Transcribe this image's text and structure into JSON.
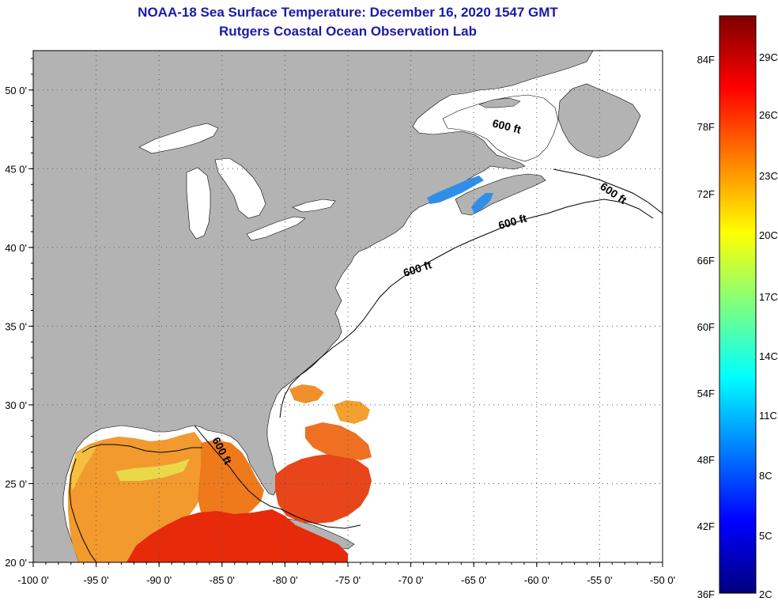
{
  "title": {
    "line1": "NOAA-18 Sea Surface Temperature:  December 16, 2020 1547 GMT",
    "line2": "Rutgers Coastal Ocean Observation Lab"
  },
  "map": {
    "lon_range": [
      -100,
      -50
    ],
    "lat_range": [
      20,
      52.5
    ],
    "x_ticks": [
      {
        "lon": -100,
        "label": "-100 0'"
      },
      {
        "lon": -95,
        "label": "-95 0'"
      },
      {
        "lon": -90,
        "label": "-90 0'"
      },
      {
        "lon": -85,
        "label": "-85 0'"
      },
      {
        "lon": -80,
        "label": "-80 0'"
      },
      {
        "lon": -75,
        "label": "-75 0'"
      },
      {
        "lon": -70,
        "label": "-70 0'"
      },
      {
        "lon": -65,
        "label": "-65 0'"
      },
      {
        "lon": -60,
        "label": "-60 0'"
      },
      {
        "lon": -55,
        "label": "-55 0'"
      },
      {
        "lon": -50,
        "label": "-50 0'"
      }
    ],
    "y_ticks": [
      {
        "lat": 50,
        "label": "50 0'"
      },
      {
        "lat": 45,
        "label": "45 0'"
      },
      {
        "lat": 40,
        "label": "40 0'"
      },
      {
        "lat": 35,
        "label": "35 0'"
      },
      {
        "lat": 30,
        "label": "30 0'"
      },
      {
        "lat": 25,
        "label": "25 0'"
      },
      {
        "lat": 20,
        "label": "20 0'"
      }
    ],
    "contour_label": "600 ft",
    "colors": {
      "land": "#b3b3b3",
      "ocean_no_data": "#ffffff",
      "grid": "#555555",
      "contour": "#000000"
    }
  },
  "colorbar": {
    "stops": [
      "#00007f",
      "#0000ff",
      "#0080ff",
      "#00ffff",
      "#7fff7f",
      "#ffff00",
      "#ff8000",
      "#ff0000",
      "#7f0000"
    ],
    "fahrenheit_labels": [
      "84F",
      "78F",
      "72F",
      "66F",
      "60F",
      "54F",
      "48F",
      "42F",
      "36F"
    ],
    "celsius_labels": [
      "29C",
      "26C",
      "23C",
      "20C",
      "17C",
      "14C",
      "11C",
      "8C",
      "5C",
      "2C"
    ]
  }
}
